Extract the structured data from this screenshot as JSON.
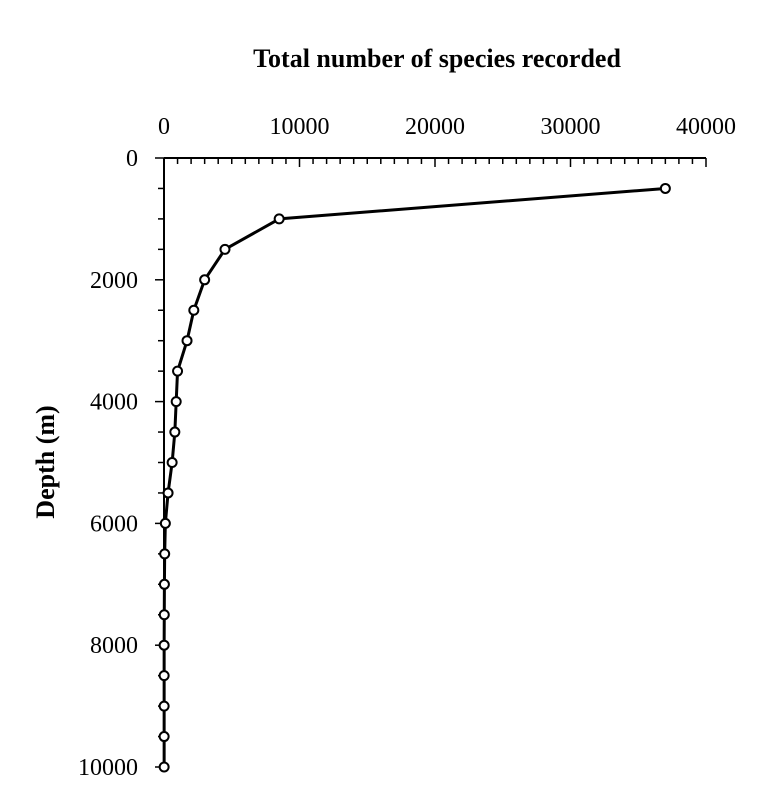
{
  "chart_data": {
    "type": "line",
    "title": "Total number of species recorded",
    "xlabel": "Total number of species recorded",
    "ylabel": "Depth (m)",
    "x_axis_position": "top",
    "y_axis_inverted": true,
    "xlim": [
      0,
      40000
    ],
    "ylim": [
      0,
      10000
    ],
    "x_ticks": [
      "0",
      "10000",
      "20000",
      "30000",
      "40000"
    ],
    "y_ticks": [
      "0",
      "2000",
      "4000",
      "6000",
      "8000",
      "10000"
    ],
    "grid": false,
    "legend": "none",
    "line_color": "#000000",
    "marker": "open-circle",
    "series": [
      {
        "x": [
          37000,
          8500,
          4500,
          3000,
          2200,
          1700,
          1000,
          900,
          800,
          600,
          300,
          100,
          50,
          30,
          20,
          10,
          10,
          10,
          10,
          10
        ],
        "y": [
          500,
          1000,
          1500,
          2000,
          2500,
          3000,
          3500,
          4000,
          4500,
          5000,
          5500,
          6000,
          6500,
          7000,
          7500,
          8000,
          8500,
          9000,
          9500,
          10000
        ]
      }
    ]
  }
}
